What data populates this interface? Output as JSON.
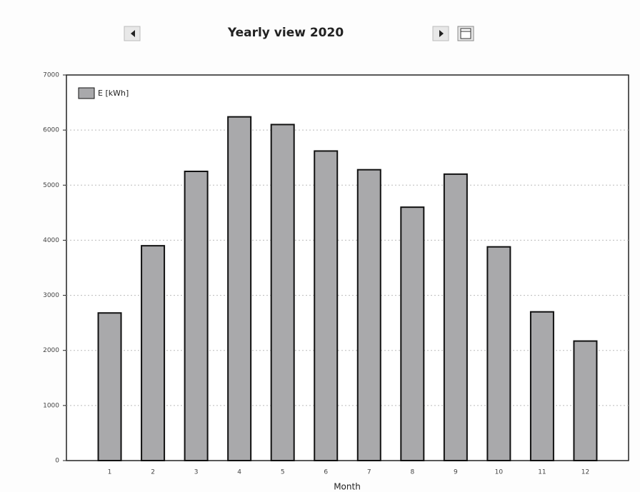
{
  "chart_data": {
    "type": "bar",
    "title": "Yearly view 2020",
    "categories": [
      "1",
      "2",
      "3",
      "4",
      "5",
      "6",
      "7",
      "8",
      "9",
      "10",
      "11",
      "12"
    ],
    "series": [
      {
        "name": "E [kWh]",
        "color": "#a9a9ab",
        "values": [
          2680,
          3900,
          5250,
          6240,
          6100,
          5620,
          5280,
          4600,
          5200,
          3880,
          2700,
          2170
        ]
      }
    ],
    "ylim": [
      0,
      7000
    ],
    "yticks": [
      0,
      1000,
      2000,
      3000,
      4000,
      5000,
      6000,
      7000
    ],
    "xlabel": "Month",
    "grid": true,
    "legend": "top-left"
  }
}
